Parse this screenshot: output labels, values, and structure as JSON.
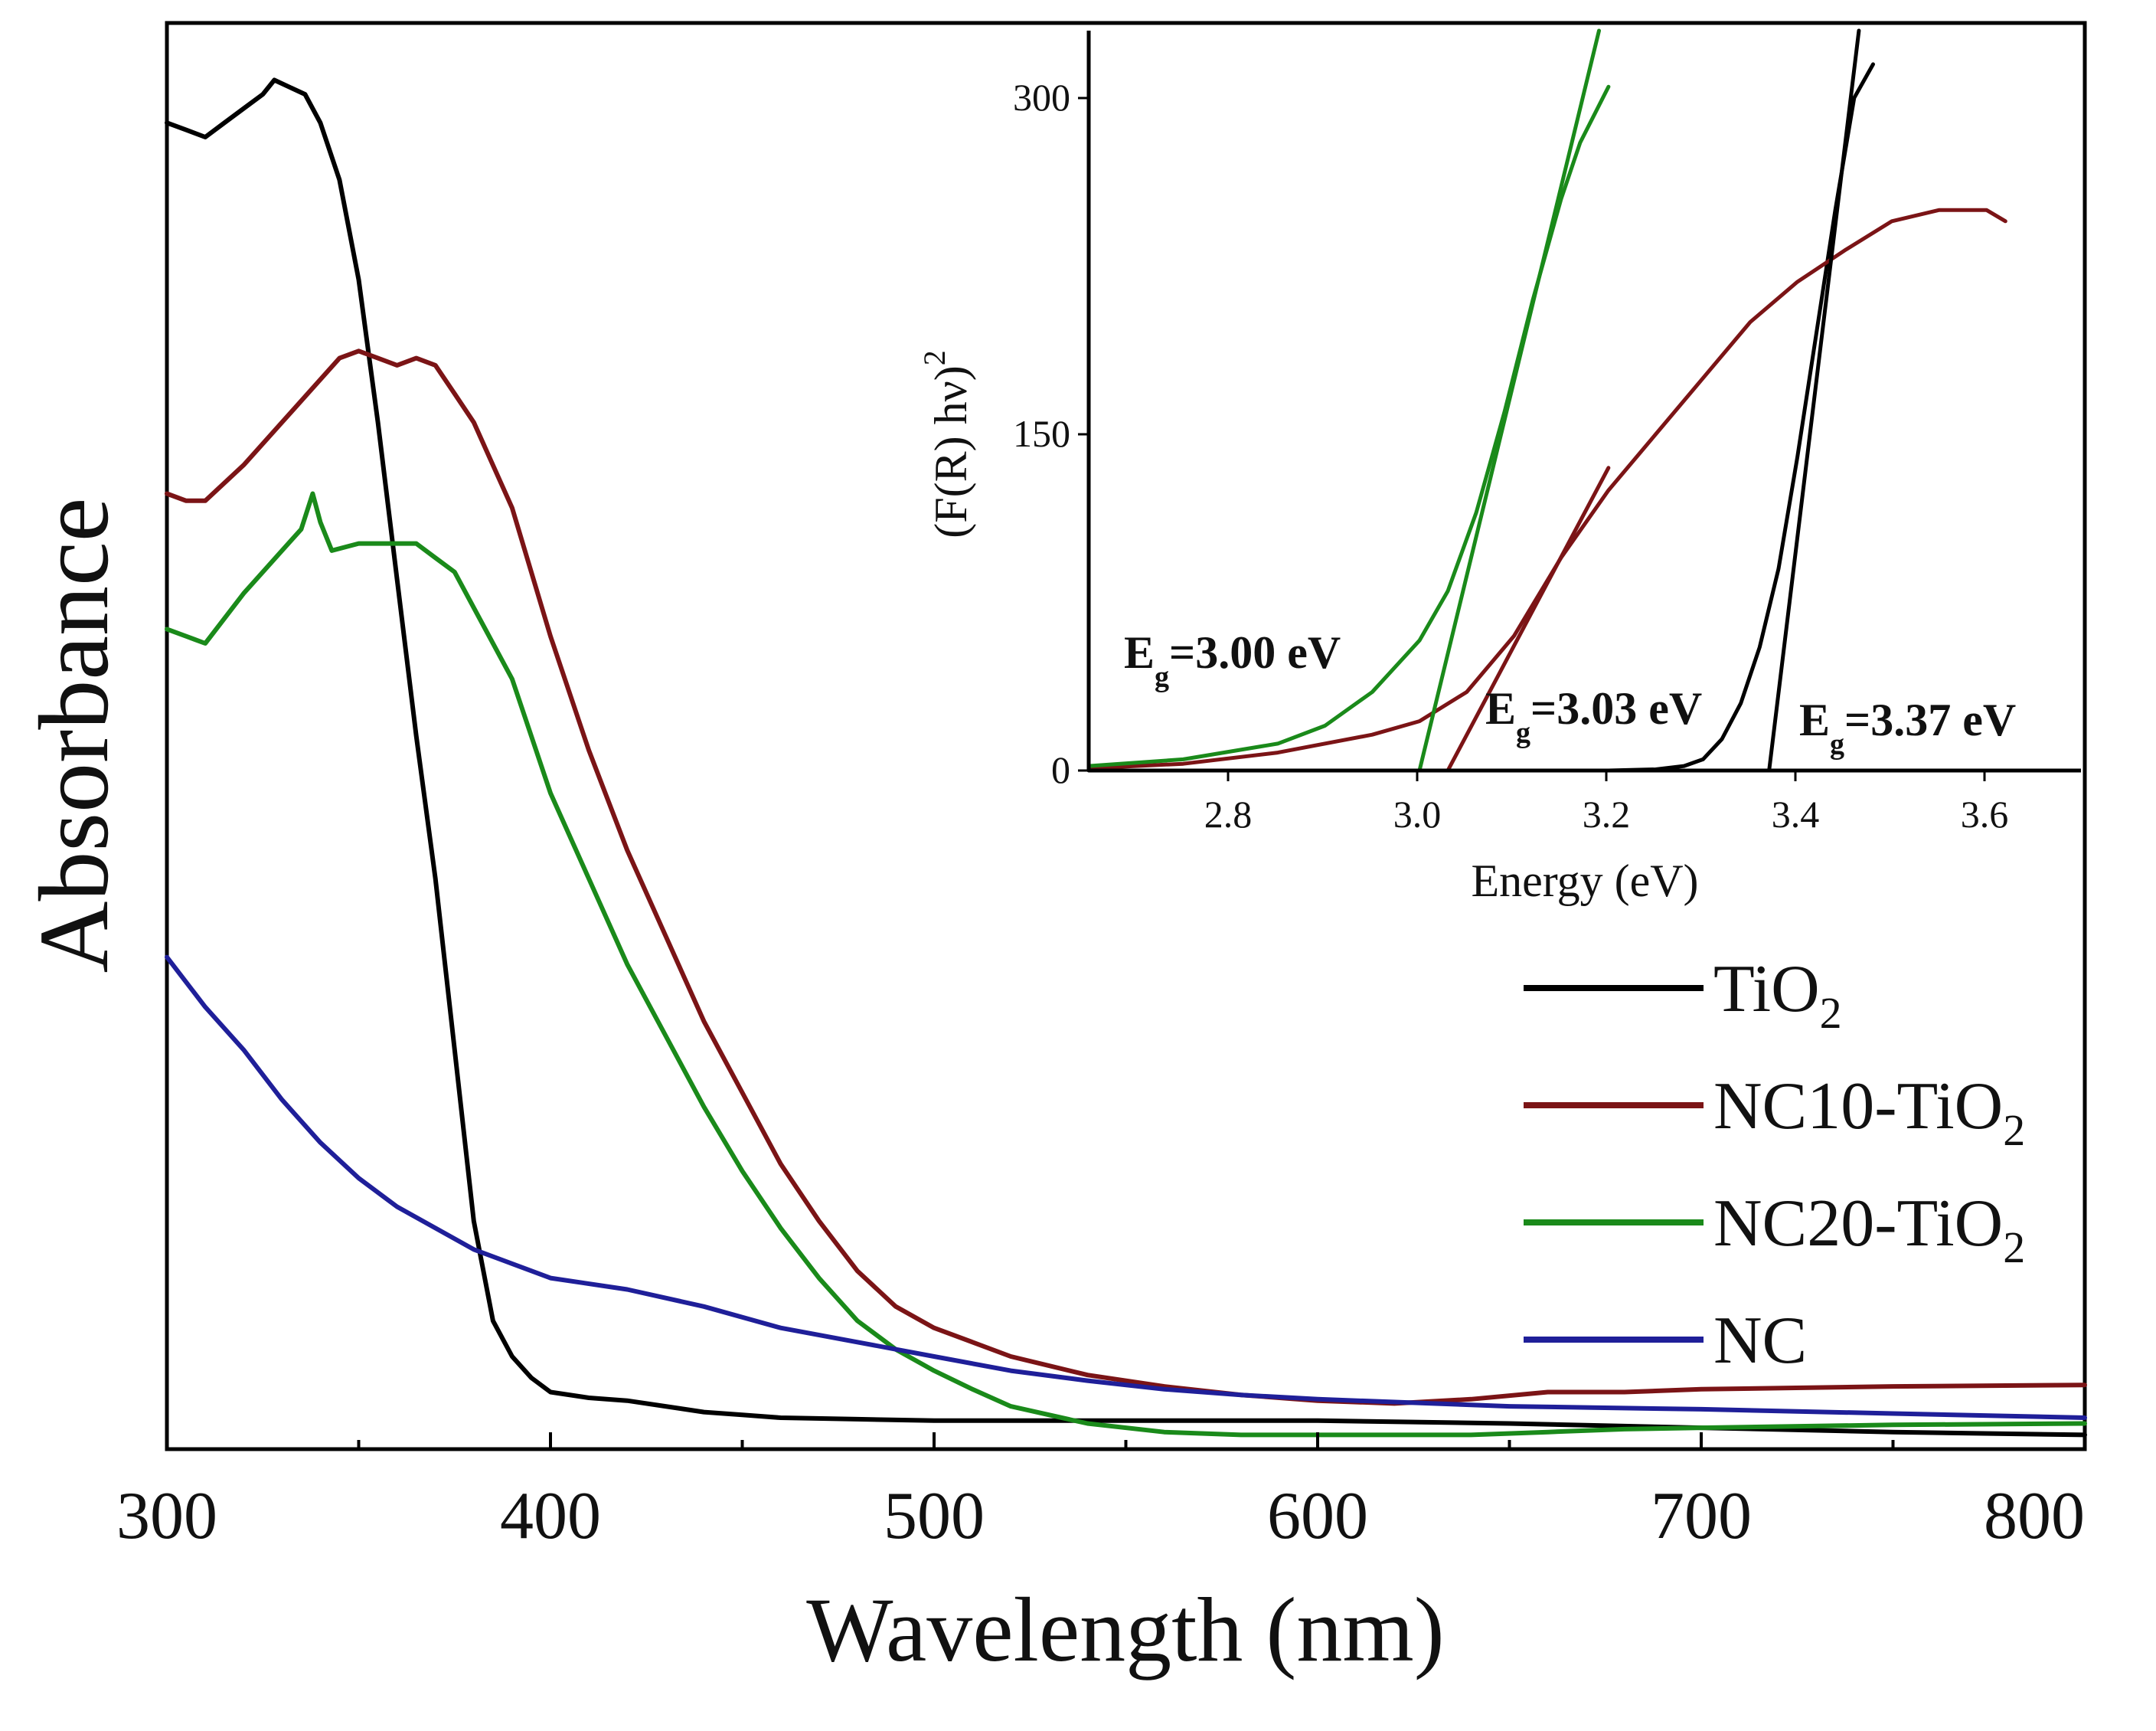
{
  "chart_data": [
    {
      "id": "main",
      "type": "line",
      "title": "",
      "xlabel": "Wavelength (nm)",
      "ylabel": "Absorbance",
      "xlim": [
        300,
        800
      ],
      "ylim": [
        0,
        1.0
      ],
      "y_tick_labels_shown": false,
      "x_ticks": [
        300,
        400,
        500,
        600,
        700,
        800
      ],
      "x_minor_ticks": [
        350,
        450,
        550,
        650,
        750
      ],
      "x_tick_labels": [
        "300",
        "400",
        "500",
        "600",
        "700",
        "800"
      ],
      "legend_position": "right-middle",
      "series": [
        {
          "name": "TiO₂",
          "base": "TiO",
          "sub": "2",
          "color": "#000000",
          "x": [
            300,
            305,
            310,
            315,
            320,
            325,
            328,
            332,
            336,
            340,
            345,
            350,
            355,
            360,
            365,
            370,
            375,
            380,
            385,
            390,
            395,
            400,
            410,
            420,
            430,
            440,
            450,
            460,
            480,
            500,
            550,
            600,
            650,
            700,
            750,
            800
          ],
          "y": [
            0.93,
            0.925,
            0.92,
            0.93,
            0.94,
            0.95,
            0.96,
            0.955,
            0.95,
            0.93,
            0.89,
            0.82,
            0.72,
            0.61,
            0.5,
            0.4,
            0.28,
            0.16,
            0.09,
            0.065,
            0.05,
            0.04,
            0.036,
            0.034,
            0.03,
            0.026,
            0.024,
            0.022,
            0.021,
            0.02,
            0.02,
            0.02,
            0.018,
            0.015,
            0.012,
            0.01
          ]
        },
        {
          "name": "NC10-TiO₂",
          "base": "NC10-TiO",
          "sub": "2",
          "color": "#7b1416",
          "x": [
            300,
            305,
            310,
            320,
            330,
            340,
            345,
            350,
            355,
            360,
            365,
            370,
            375,
            380,
            390,
            400,
            410,
            420,
            430,
            440,
            450,
            460,
            470,
            480,
            490,
            500,
            510,
            520,
            540,
            560,
            580,
            600,
            620,
            640,
            660,
            680,
            700,
            750,
            800
          ],
          "y": [
            0.67,
            0.665,
            0.665,
            0.69,
            0.72,
            0.75,
            0.765,
            0.77,
            0.765,
            0.76,
            0.765,
            0.76,
            0.74,
            0.72,
            0.66,
            0.57,
            0.49,
            0.42,
            0.36,
            0.3,
            0.25,
            0.2,
            0.16,
            0.125,
            0.1,
            0.085,
            0.075,
            0.065,
            0.052,
            0.044,
            0.038,
            0.034,
            0.032,
            0.035,
            0.04,
            0.04,
            0.042,
            0.044,
            0.045
          ]
        },
        {
          "name": "NC20-TiO₂",
          "base": "NC20-TiO",
          "sub": "2",
          "color": "#1a8a1a",
          "x": [
            300,
            305,
            310,
            320,
            330,
            335,
            338,
            340,
            343,
            350,
            360,
            365,
            370,
            375,
            380,
            390,
            400,
            410,
            420,
            430,
            440,
            450,
            460,
            470,
            480,
            490,
            500,
            510,
            520,
            540,
            560,
            580,
            600,
            620,
            640,
            660,
            680,
            700,
            750,
            800
          ],
          "y": [
            0.575,
            0.57,
            0.565,
            0.6,
            0.63,
            0.645,
            0.67,
            0.65,
            0.63,
            0.635,
            0.635,
            0.635,
            0.625,
            0.615,
            0.59,
            0.54,
            0.46,
            0.4,
            0.34,
            0.29,
            0.24,
            0.195,
            0.155,
            0.12,
            0.09,
            0.07,
            0.055,
            0.042,
            0.03,
            0.018,
            0.012,
            0.01,
            0.01,
            0.01,
            0.01,
            0.012,
            0.014,
            0.015,
            0.017,
            0.018
          ]
        },
        {
          "name": "NC",
          "base": "NC",
          "sub": "",
          "color": "#1f1f99",
          "x": [
            300,
            310,
            320,
            330,
            340,
            350,
            360,
            370,
            380,
            390,
            400,
            420,
            440,
            460,
            480,
            500,
            520,
            540,
            560,
            580,
            600,
            650,
            700,
            750,
            800
          ],
          "y": [
            0.345,
            0.31,
            0.28,
            0.245,
            0.215,
            0.19,
            0.17,
            0.155,
            0.14,
            0.13,
            0.12,
            0.112,
            0.1,
            0.085,
            0.075,
            0.065,
            0.055,
            0.048,
            0.042,
            0.038,
            0.035,
            0.03,
            0.028,
            0.025,
            0.022
          ]
        }
      ]
    },
    {
      "id": "inset",
      "type": "line",
      "title": "",
      "xlabel": "Energy (eV)",
      "ylabel_base": "(F(R) hν)",
      "ylabel_sup": "2",
      "xlim": [
        2.65,
        3.7
      ],
      "ylim": [
        0,
        330
      ],
      "x_ticks": [
        2.8,
        3.0,
        3.2,
        3.4,
        3.6
      ],
      "x_tick_labels": [
        "2.8",
        "3.0",
        "3.2",
        "3.4",
        "3.6"
      ],
      "y_ticks": [
        0,
        150,
        300
      ],
      "y_tick_labels": [
        "0",
        "150",
        "300"
      ],
      "series": [
        {
          "name": "TiO₂",
          "color": "#000000",
          "x": [
            2.65,
            2.8,
            3.0,
            3.2,
            3.25,
            3.28,
            3.3,
            3.32,
            3.34,
            3.36,
            3.38,
            3.4,
            3.42,
            3.44,
            3.46,
            3.48
          ],
          "y": [
            0,
            0,
            0,
            0,
            0.5,
            2,
            5,
            14,
            30,
            55,
            90,
            140,
            195,
            250,
            300,
            315
          ]
        },
        {
          "name": "NC10-TiO₂",
          "color": "#7b1416",
          "x": [
            2.65,
            2.75,
            2.85,
            2.95,
            3.0,
            3.05,
            3.1,
            3.15,
            3.2,
            3.25,
            3.3,
            3.35,
            3.4,
            3.45,
            3.5,
            3.55,
            3.6,
            3.62
          ],
          "y": [
            1,
            3,
            8,
            16,
            22,
            35,
            60,
            95,
            125,
            150,
            175,
            200,
            218,
            232,
            245,
            250,
            250,
            245
          ]
        },
        {
          "name": "NC20-TiO₂",
          "color": "#1a8a1a",
          "x": [
            2.65,
            2.75,
            2.85,
            2.9,
            2.95,
            3.0,
            3.03,
            3.06,
            3.09,
            3.12,
            3.15,
            3.17,
            3.2
          ],
          "y": [
            2,
            5,
            12,
            20,
            35,
            58,
            80,
            115,
            160,
            210,
            255,
            280,
            305
          ]
        }
      ],
      "fits": [
        {
          "name": "TiO₂ fit",
          "color": "#000000",
          "x": [
            3.37,
            3.465
          ],
          "y": [
            0,
            330
          ]
        },
        {
          "name": "NC10-TiO₂ fit",
          "color": "#7b1416",
          "x": [
            3.03,
            3.2
          ],
          "y": [
            0,
            135
          ]
        },
        {
          "name": "NC20-TiO₂ fit",
          "color": "#1a8a1a",
          "x": [
            3.0,
            3.19
          ],
          "y": [
            0,
            330
          ]
        }
      ],
      "annotations": [
        {
          "base": "E",
          "sub": "g",
          "text": "=3.00 eV",
          "color": "#1a8a1a"
        },
        {
          "base": "E",
          "sub": "g",
          "text": "=3.03 eV",
          "color": "#7b1416"
        },
        {
          "base": "E",
          "sub": "g",
          "text": "=3.37 eV",
          "color": "#111111"
        }
      ]
    }
  ]
}
